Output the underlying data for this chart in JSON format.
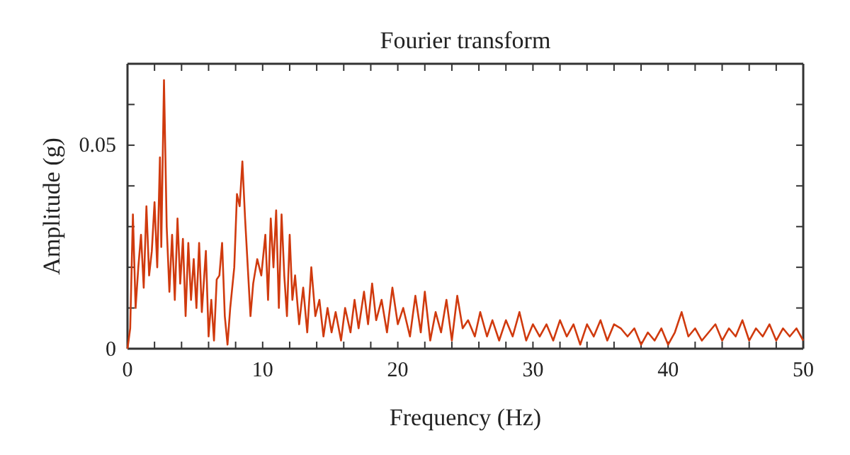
{
  "chart_data": {
    "type": "line",
    "title": "Fourier transform",
    "xlabel": "Frequency (Hz)",
    "ylabel": "Amplitude (g)",
    "xlim": [
      0,
      50
    ],
    "ylim": [
      0,
      0.07
    ],
    "xticks": [
      0,
      {
        "value": 2,
        "label": null
      },
      {
        "value": 4,
        "label": null
      },
      {
        "value": 6,
        "label": null
      },
      {
        "value": 8,
        "label": null
      },
      10,
      {
        "value": 12,
        "label": null
      },
      {
        "value": 14,
        "label": null
      },
      {
        "value": 16,
        "label": null
      },
      {
        "value": 18,
        "label": null
      },
      20,
      {
        "value": 22,
        "label": null
      },
      {
        "value": 24,
        "label": null
      },
      {
        "value": 26,
        "label": null
      },
      {
        "value": 28,
        "label": null
      },
      30,
      {
        "value": 32,
        "label": null
      },
      {
        "value": 34,
        "label": null
      },
      {
        "value": 36,
        "label": null
      },
      {
        "value": 38,
        "label": null
      },
      40,
      {
        "value": 42,
        "label": null
      },
      {
        "value": 44,
        "label": null
      },
      {
        "value": 46,
        "label": null
      },
      {
        "value": 48,
        "label": null
      },
      50
    ],
    "yticks": [
      0,
      {
        "value": 0.01,
        "label": null
      },
      {
        "value": 0.02,
        "label": null
      },
      {
        "value": 0.03,
        "label": null
      },
      {
        "value": 0.04,
        "label": null
      },
      0.05,
      {
        "value": 0.06,
        "label": null
      }
    ],
    "grid": false,
    "series": [
      {
        "color": "#d03a0e",
        "x": [
          0,
          0.2,
          0.4,
          0.6,
          0.8,
          1.0,
          1.2,
          1.4,
          1.6,
          1.8,
          2.0,
          2.2,
          2.4,
          2.5,
          2.7,
          2.9,
          3.1,
          3.3,
          3.5,
          3.7,
          3.9,
          4.1,
          4.3,
          4.5,
          4.7,
          4.9,
          5.1,
          5.3,
          5.5,
          5.8,
          6.0,
          6.2,
          6.4,
          6.6,
          6.8,
          7.0,
          7.2,
          7.4,
          7.6,
          7.9,
          8.1,
          8.3,
          8.5,
          8.7,
          8.9,
          9.1,
          9.3,
          9.6,
          9.9,
          10.2,
          10.4,
          10.6,
          10.8,
          11.0,
          11.2,
          11.4,
          11.6,
          11.8,
          12.0,
          12.2,
          12.4,
          12.7,
          13.0,
          13.3,
          13.6,
          13.9,
          14.2,
          14.5,
          14.8,
          15.1,
          15.4,
          15.8,
          16.1,
          16.5,
          16.8,
          17.1,
          17.5,
          17.8,
          18.1,
          18.4,
          18.8,
          19.2,
          19.6,
          20.0,
          20.4,
          20.9,
          21.3,
          21.7,
          22.0,
          22.4,
          22.8,
          23.2,
          23.6,
          24.0,
          24.4,
          24.8,
          25.2,
          25.7,
          26.1,
          26.6,
          27.0,
          27.5,
          28.0,
          28.5,
          29.0,
          29.5,
          30.0,
          30.5,
          31.0,
          31.5,
          32.0,
          32.5,
          33.0,
          33.5,
          34.0,
          34.5,
          35.0,
          35.5,
          36.0,
          36.5,
          37.0,
          37.5,
          38.0,
          38.5,
          39.0,
          39.5,
          40.0,
          40.5,
          41.0,
          41.5,
          42.0,
          42.5,
          43.0,
          43.5,
          44.0,
          44.5,
          45.0,
          45.5,
          46.0,
          46.5,
          47.0,
          47.5,
          48.0,
          48.5,
          49.0,
          49.5,
          50.0
        ],
        "values": [
          0,
          0.005,
          0.033,
          0.01,
          0.02,
          0.028,
          0.015,
          0.035,
          0.018,
          0.024,
          0.036,
          0.02,
          0.047,
          0.025,
          0.066,
          0.03,
          0.014,
          0.028,
          0.012,
          0.032,
          0.016,
          0.027,
          0.008,
          0.026,
          0.012,
          0.022,
          0.01,
          0.026,
          0.009,
          0.024,
          0.003,
          0.012,
          0.002,
          0.017,
          0.018,
          0.026,
          0.008,
          0.001,
          0.01,
          0.02,
          0.038,
          0.035,
          0.046,
          0.032,
          0.02,
          0.008,
          0.016,
          0.022,
          0.018,
          0.028,
          0.012,
          0.032,
          0.02,
          0.034,
          0.01,
          0.033,
          0.018,
          0.008,
          0.028,
          0.012,
          0.018,
          0.006,
          0.015,
          0.004,
          0.02,
          0.008,
          0.012,
          0.003,
          0.01,
          0.004,
          0.009,
          0.002,
          0.01,
          0.004,
          0.012,
          0.005,
          0.014,
          0.006,
          0.016,
          0.007,
          0.012,
          0.004,
          0.015,
          0.006,
          0.01,
          0.003,
          0.013,
          0.004,
          0.014,
          0.002,
          0.009,
          0.004,
          0.012,
          0.002,
          0.013,
          0.005,
          0.007,
          0.003,
          0.009,
          0.003,
          0.007,
          0.002,
          0.007,
          0.003,
          0.009,
          0.002,
          0.006,
          0.003,
          0.006,
          0.002,
          0.007,
          0.003,
          0.006,
          0.001,
          0.006,
          0.003,
          0.007,
          0.002,
          0.006,
          0.005,
          0.003,
          0.005,
          0.001,
          0.004,
          0.002,
          0.005,
          0.001,
          0.004,
          0.009,
          0.003,
          0.005,
          0.002,
          0.004,
          0.006,
          0.002,
          0.005,
          0.003,
          0.007,
          0.002,
          0.005,
          0.003,
          0.006,
          0.002,
          0.005,
          0.003,
          0.005,
          0.002
        ]
      }
    ]
  }
}
